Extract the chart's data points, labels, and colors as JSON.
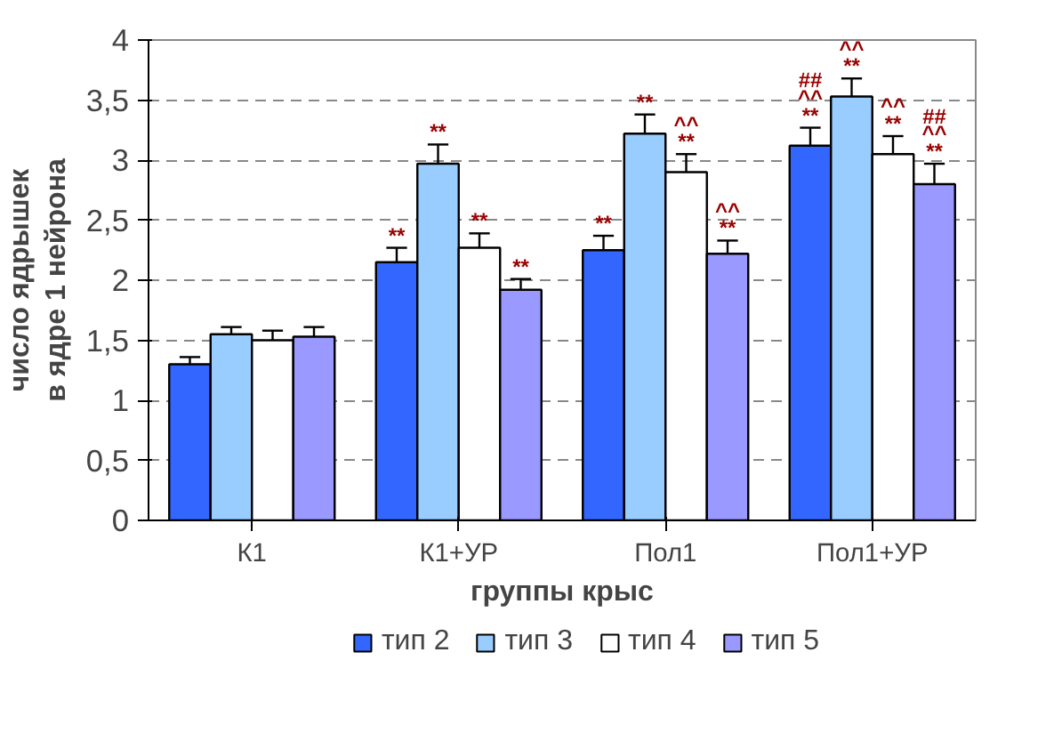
{
  "chart_data": {
    "type": "bar",
    "xlabel": "группы крыс",
    "ylabel": "число ядрышек\nв ядре 1 нейрона",
    "categories": [
      "К1",
      "К1+УР",
      "Пол1",
      "Пол1+УР"
    ],
    "ylim": [
      0,
      4
    ],
    "yticks": [
      0,
      {
        "value": 0.5,
        "label": "0,5"
      },
      1,
      {
        "value": 1.5,
        "label": "1,5"
      },
      2,
      {
        "value": 2.5,
        "label": "2,5"
      },
      3,
      {
        "value": 3.5,
        "label": "3,5"
      },
      4
    ],
    "grid": "y",
    "legend": "bottom",
    "series": [
      {
        "name": "тип 2",
        "color": "#3366ff",
        "values": [
          1.3,
          2.15,
          2.25,
          3.12
        ],
        "errors": [
          [
            1.3,
            1.36
          ],
          [
            2.15,
            2.27
          ],
          [
            2.25,
            2.37
          ],
          [
            3.12,
            3.27
          ]
        ],
        "value_labels": [
          null,
          "**",
          "**",
          "##\n^^\n**"
        ]
      },
      {
        "name": "тип 3",
        "color": "#99ccff",
        "values": [
          1.55,
          2.97,
          3.22,
          3.53
        ],
        "errors": [
          [
            1.55,
            1.61
          ],
          [
            2.97,
            3.13
          ],
          [
            3.22,
            3.38
          ],
          [
            3.53,
            3.68
          ]
        ],
        "value_labels": [
          null,
          "**",
          "**",
          "^^\n**"
        ]
      },
      {
        "name": "тип 4",
        "color": "#ffffff",
        "values": [
          1.5,
          2.27,
          2.9,
          3.05
        ],
        "errors": [
          [
            1.5,
            1.58
          ],
          [
            2.27,
            2.39
          ],
          [
            2.9,
            3.05
          ],
          [
            3.05,
            3.2
          ]
        ],
        "value_labels": [
          null,
          "**",
          "^^\n**",
          "^^\n**"
        ]
      },
      {
        "name": "тип 5",
        "color": "#9999ff",
        "values": [
          1.53,
          1.92,
          2.22,
          2.8
        ],
        "errors": [
          [
            1.53,
            1.61
          ],
          [
            1.92,
            2.01
          ],
          [
            2.22,
            2.33
          ],
          [
            2.8,
            2.97
          ]
        ],
        "value_labels": [
          null,
          "**",
          "^^\n**",
          "##\n^^\n**"
        ]
      }
    ]
  }
}
